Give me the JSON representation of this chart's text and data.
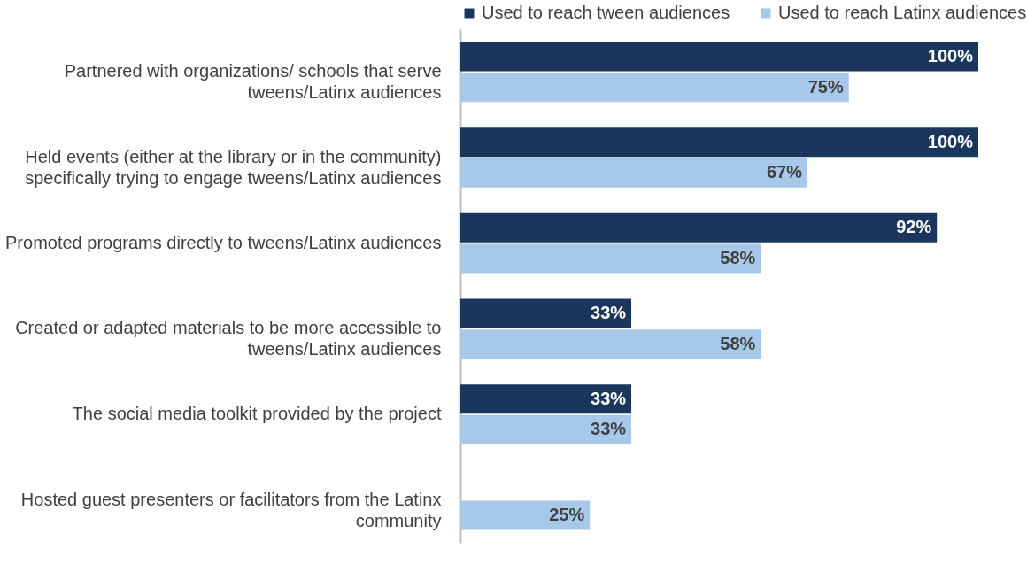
{
  "chart_data": {
    "type": "bar",
    "orientation": "horizontal",
    "legend": "top",
    "categories": [
      "Partnered with organizations/ schools that serve tweens/Latinx audiences",
      "Held events (either at the library or in the community) specifically trying to engage tweens/Latinx audiences",
      "Promoted programs directly to tweens/Latinx audiences",
      "Created or adapted materials to be more accessible to tweens/Latinx audiences",
      "The social media toolkit provided by the project",
      "Hosted guest presenters or facilitators from the Latinx community"
    ],
    "series": [
      {
        "name": "Used to reach tween audiences",
        "color": "#1b365d",
        "values": [
          100,
          100,
          92,
          33,
          33,
          null
        ],
        "value_labels": [
          "100%",
          "100%",
          "92%",
          "33%",
          "33%",
          null
        ]
      },
      {
        "name": "Used to reach Latinx audiences",
        "color": "#a8c8ea",
        "values": [
          75,
          67,
          58,
          58,
          33,
          25
        ],
        "value_labels": [
          "75%",
          "67%",
          "58%",
          "58%",
          "33%",
          "25%"
        ]
      }
    ]
  }
}
